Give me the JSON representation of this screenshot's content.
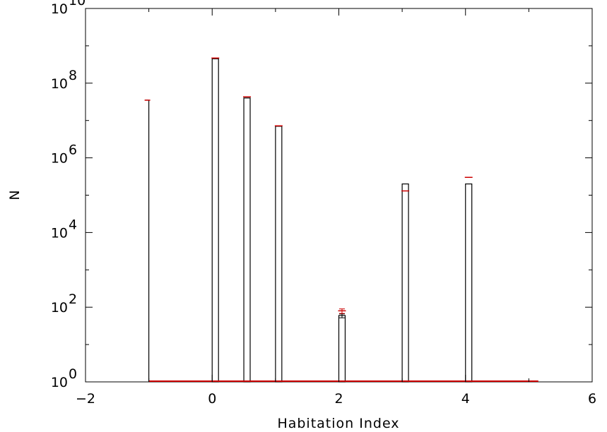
{
  "chart_data": {
    "type": "bar",
    "title": "",
    "xlabel": "Habitation Index",
    "ylabel": "N",
    "xlim": [
      -2,
      6
    ],
    "ylim": [
      1,
      10000000000
    ],
    "yscale": "log",
    "grid": false,
    "x_ticks": [
      -2,
      0,
      2,
      4,
      6
    ],
    "x_tick_labels": [
      "−2",
      "0",
      "2",
      "4",
      "6"
    ],
    "y_tick_exponents": [
      0,
      2,
      4,
      6,
      8,
      10
    ],
    "y_tick_base": "10",
    "bar_width": 0.1,
    "series": [
      {
        "color": "#000000",
        "x": [
          -1.0,
          0.05,
          0.55,
          1.05,
          2.05,
          3.05,
          4.05
        ],
        "values": [
          35000000,
          450000000,
          40000000,
          7000000,
          60,
          200000,
          200000
        ]
      },
      {
        "color": "#cc0000",
        "marker": "dash",
        "x": [
          -1.0,
          0.05,
          0.55,
          1.05,
          2.05,
          3.05,
          4.05
        ],
        "values": [
          35000000,
          470000000,
          43000000,
          7200000,
          80,
          130000,
          300000
        ]
      }
    ],
    "error_bars": [
      {
        "x": 2.05,
        "low": 52,
        "high": 66,
        "color": "#000000"
      },
      {
        "x": 2.05,
        "low": 68,
        "high": 90,
        "color": "#cc0000"
      }
    ],
    "baseline": {
      "from": -1.0,
      "to": 5.15,
      "value": 1,
      "color": "#cc0000"
    }
  }
}
